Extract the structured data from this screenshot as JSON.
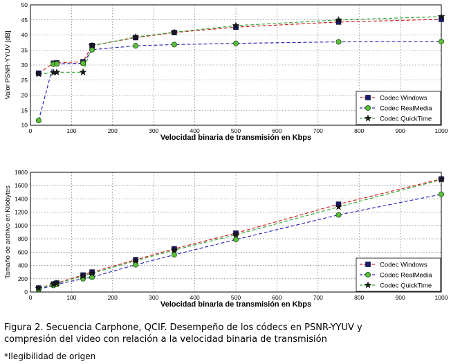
{
  "caption": {
    "line1": "Figura 2. Secuencia Carphone, QCIF. Desempeño de los códecs en PSNR-YYUV y",
    "line2": "compresión del video con relación a la velocidad binaria de transmisión"
  },
  "footnote": "*Ilegibilidad de origen",
  "chart_data": [
    {
      "type": "line",
      "xlabel": "Velocidad binaria de transmisión en Kbps",
      "ylabel": "Valor PSNR-YYUV [dB]",
      "xlim": [
        0,
        1000
      ],
      "ylim": [
        10,
        50
      ],
      "xticks": [
        0,
        100,
        200,
        300,
        400,
        500,
        600,
        700,
        800,
        900,
        1000
      ],
      "yticks": [
        10,
        15,
        20,
        25,
        30,
        35,
        40,
        45,
        50
      ],
      "grid": true,
      "legend_position": "bottom-right",
      "series": [
        {
          "name": "Codec Windows",
          "color": "#d42020",
          "marker": "square",
          "x": [
            20,
            56,
            64,
            128,
            150,
            256,
            350,
            500,
            750,
            1000
          ],
          "y": [
            27.3,
            30.6,
            30.7,
            31.1,
            36.5,
            39.1,
            40.8,
            42.6,
            44.3,
            45.2
          ]
        },
        {
          "name": "Codec RealMedia",
          "color": "#2b2bb8",
          "marker": "circle",
          "x": [
            20,
            56,
            64,
            128,
            150,
            256,
            350,
            500,
            750,
            1000
          ],
          "y": [
            11.6,
            30.3,
            30.4,
            30.6,
            35.1,
            36.4,
            36.8,
            37.2,
            37.7,
            37.8
          ]
        },
        {
          "name": "Codec QuickTime",
          "color": "#3aa83a",
          "marker": "star",
          "x": [
            20,
            56,
            64,
            128,
            150,
            256,
            350,
            500,
            750,
            1000
          ],
          "y": [
            27.0,
            27.5,
            27.6,
            27.6,
            36.4,
            39.3,
            40.9,
            43.1,
            45.0,
            46.1
          ]
        }
      ]
    },
    {
      "type": "line",
      "xlabel": "Velocidad binaria de transmisión en Kbps",
      "ylabel": "Tamaño de archivo en Kilobytes",
      "xlim": [
        0,
        1000
      ],
      "ylim": [
        0,
        1800
      ],
      "xticks": [
        0,
        100,
        200,
        300,
        400,
        500,
        600,
        700,
        800,
        900,
        1000
      ],
      "yticks": [
        0,
        200,
        400,
        600,
        800,
        1000,
        1200,
        1400,
        1600,
        1800
      ],
      "grid": true,
      "legend_position": "bottom-right",
      "series": [
        {
          "name": "Codec Windows",
          "color": "#d42020",
          "marker": "square",
          "x": [
            20,
            56,
            64,
            128,
            150,
            256,
            350,
            500,
            750,
            1000
          ],
          "y": [
            60,
            120,
            135,
            255,
            300,
            485,
            650,
            885,
            1320,
            1700
          ]
        },
        {
          "name": "Codec RealMedia",
          "color": "#2b2bb8",
          "marker": "circle",
          "x": [
            20,
            56,
            64,
            128,
            150,
            256,
            350,
            500,
            750,
            1000
          ],
          "y": [
            40,
            100,
            115,
            200,
            225,
            410,
            560,
            790,
            1160,
            1470
          ]
        },
        {
          "name": "Codec QuickTime",
          "color": "#3aa83a",
          "marker": "star",
          "x": [
            20,
            56,
            64,
            128,
            150,
            256,
            350,
            500,
            750,
            1000
          ],
          "y": [
            55,
            115,
            130,
            240,
            280,
            470,
            630,
            860,
            1280,
            1690
          ]
        }
      ]
    }
  ]
}
